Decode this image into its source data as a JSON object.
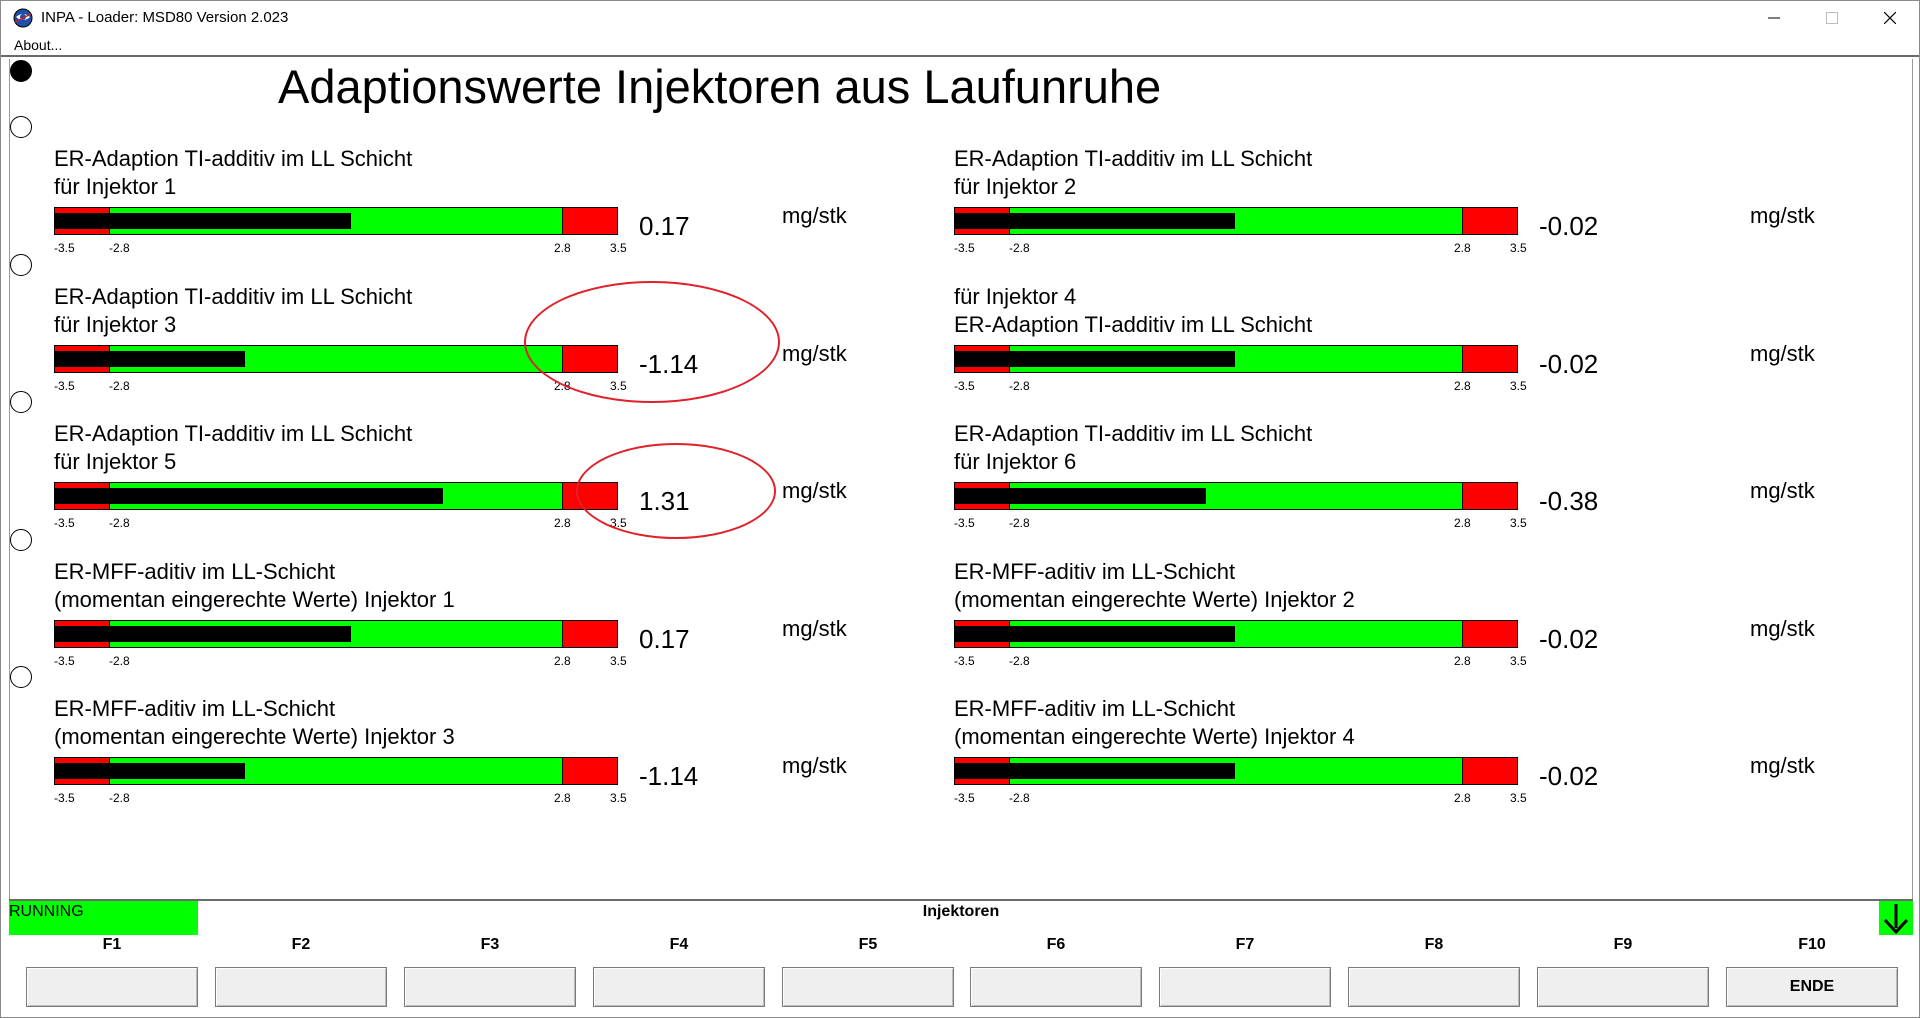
{
  "window": {
    "title": "INPA - Loader:  MSD80 Version 2.023"
  },
  "menu": {
    "about": "About..."
  },
  "page_title": "Adaptionswerte Injektoren aus Laufunruhe",
  "scale": {
    "min": -3.5,
    "max": 3.5,
    "ticks": [
      "-3.5",
      "-2.8",
      "2.8",
      "3.5"
    ]
  },
  "measurements": [
    {
      "line1": "ER-Adaption TI-additiv im LL Schicht",
      "line2": "für Injektor 1",
      "value": "0.17",
      "unit": "mg/stk",
      "level": 0.17
    },
    {
      "line1": "ER-Adaption TI-additiv im LL Schicht",
      "line2": "für Injektor 2",
      "value": "-0.02",
      "unit": "mg/stk",
      "level": -0.02
    },
    {
      "line1": "ER-Adaption TI-additiv im LL Schicht",
      "line2": "für Injektor 3",
      "value": "-1.14",
      "unit": "mg/stk",
      "level": -1.14
    },
    {
      "line1": "für Injektor 4",
      "line2": "ER-Adaption TI-additiv im LL Schicht",
      "value": "-0.02",
      "unit": "mg/stk",
      "level": -0.02
    },
    {
      "line1": "ER-Adaption TI-additiv im LL Schicht",
      "line2": "für Injektor 5",
      "value": "1.31",
      "unit": "mg/stk",
      "level": 1.31
    },
    {
      "line1": "ER-Adaption TI-additiv im LL Schicht",
      "line2": "für Injektor 6",
      "value": "-0.38",
      "unit": "mg/stk",
      "level": -0.38
    },
    {
      "line1": "ER-MFF-aditiv im LL-Schicht",
      "line2": "(momentan eingerechte Werte) Injektor 1",
      "value": "0.17",
      "unit": "mg/stk",
      "level": 0.17
    },
    {
      "line1": "ER-MFF-aditiv im LL-Schicht",
      "line2": "(momentan eingerechte Werte) Injektor 2",
      "value": "-0.02",
      "unit": "mg/stk",
      "level": -0.02
    },
    {
      "line1": "ER-MFF-aditiv im LL-Schicht",
      "line2": "(momentan eingerechte Werte) Injektor 3",
      "value": "-1.14",
      "unit": "mg/stk",
      "level": -1.14
    },
    {
      "line1": "ER-MFF-aditiv im LL-Schicht",
      "line2": "(momentan eingerechte Werte) Injektor 4",
      "value": "-0.02",
      "unit": "mg/stk",
      "level": -0.02
    }
  ],
  "status": {
    "state": "RUNNING",
    "screen": "Injektoren"
  },
  "fkeys": [
    {
      "key": "F1",
      "label": ""
    },
    {
      "key": "F2",
      "label": ""
    },
    {
      "key": "F3",
      "label": ""
    },
    {
      "key": "F4",
      "label": ""
    },
    {
      "key": "F5",
      "label": ""
    },
    {
      "key": "F6",
      "label": ""
    },
    {
      "key": "F7",
      "label": ""
    },
    {
      "key": "F8",
      "label": ""
    },
    {
      "key": "F9",
      "label": ""
    },
    {
      "key": "F10",
      "label": "ENDE"
    }
  ],
  "colors": {
    "ok": "#00ff00",
    "limit": "#ff0000",
    "fill": "#000000",
    "annotation": "#e0202a"
  }
}
